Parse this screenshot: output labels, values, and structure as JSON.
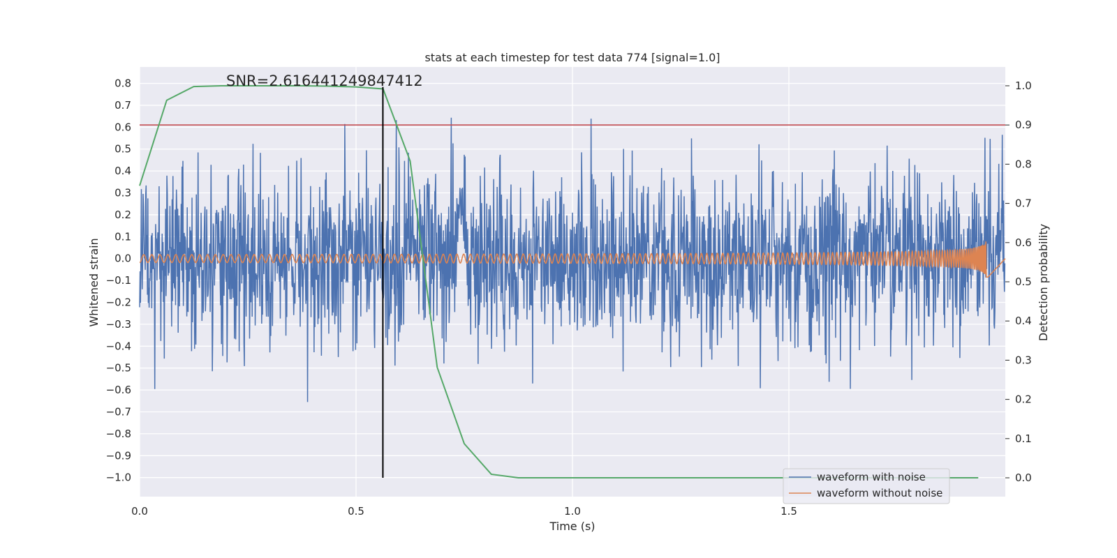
{
  "chart_data": {
    "type": "line",
    "title": "stats at each timestep for test data 774 [signal=1.0]",
    "xlabel": "Time (s)",
    "ylabel": "Whitened strain",
    "y2label": "Detection probability",
    "xlim": [
      0.0,
      2.0
    ],
    "ylim": [
      -1.087,
      0.875
    ],
    "y2lim": [
      -0.048,
      1.048
    ],
    "grid": true,
    "legend_position": "lower-right",
    "annotation": "SNR=2.616441249847412",
    "x_ticks": [
      "0.0",
      "0.5",
      "1.0",
      "1.5"
    ],
    "x_tick_values": [
      0.0,
      0.5,
      1.0,
      1.5
    ],
    "y_ticks": [
      "0.8",
      "0.7",
      "0.6",
      "0.5",
      "0.4",
      "0.3",
      "0.2",
      "0.1",
      "0.0",
      "−0.1",
      "−0.2",
      "−0.3",
      "−0.4",
      "−0.5",
      "−0.6",
      "−0.7",
      "−0.8",
      "−0.9",
      "−1.0"
    ],
    "y_tick_values": [
      0.8,
      0.7,
      0.6,
      0.5,
      0.4,
      0.3,
      0.2,
      0.1,
      0.0,
      -0.1,
      -0.2,
      -0.3,
      -0.4,
      -0.5,
      -0.6,
      -0.7,
      -0.8,
      -0.9,
      -1.0
    ],
    "y2_ticks": [
      "1.0",
      "0.9",
      "0.8",
      "0.7",
      "0.6",
      "0.5",
      "0.4",
      "0.3",
      "0.2",
      "0.1",
      "0.0"
    ],
    "y2_tick_values": [
      1.0,
      0.9,
      0.8,
      0.7,
      0.6,
      0.5,
      0.4,
      0.3,
      0.2,
      0.1,
      0.0
    ],
    "threshold": {
      "name": "detection threshold",
      "y2": 0.9,
      "color": "#c44e52"
    },
    "marker_time": {
      "name": "marker time",
      "x": 0.562,
      "color": "#000000"
    },
    "series": [
      {
        "name": "waveform with noise",
        "axis": "left",
        "color": "#4c72b0",
        "sample_rate": 1000,
        "duration": 2.0,
        "seed": 774,
        "std": 0.2,
        "note": "approximate Gaussian noise trace"
      },
      {
        "name": "waveform without noise",
        "axis": "left",
        "color": "#dd8452",
        "kind": "chirp",
        "amp_start": 0.018,
        "amp_end": 0.09,
        "merger_time": 1.96
      },
      {
        "name": "detection probability",
        "axis": "right",
        "color": "#55a868",
        "x": [
          0.0,
          0.0625,
          0.125,
          0.1875,
          0.25,
          0.3125,
          0.375,
          0.4375,
          0.5,
          0.5625,
          0.625,
          0.6875,
          0.75,
          0.8125,
          0.875,
          0.9375,
          1.0,
          1.0625,
          1.125,
          1.1875,
          1.25,
          1.3125,
          1.375,
          1.4375,
          1.5,
          1.5625,
          1.625,
          1.6875,
          1.75,
          1.8125,
          1.875,
          1.9375
        ],
        "values": [
          0.745,
          0.963,
          0.998,
          1.0,
          1.0,
          1.0,
          1.0,
          0.999,
          0.997,
          0.992,
          0.808,
          0.282,
          0.087,
          0.009,
          0.0,
          0.0,
          0.0,
          0.0,
          0.0,
          0.0,
          0.0,
          0.0,
          0.0,
          0.0,
          0.0,
          0.0,
          0.0,
          0.0,
          0.0,
          0.0,
          0.0,
          0.0
        ]
      }
    ]
  }
}
